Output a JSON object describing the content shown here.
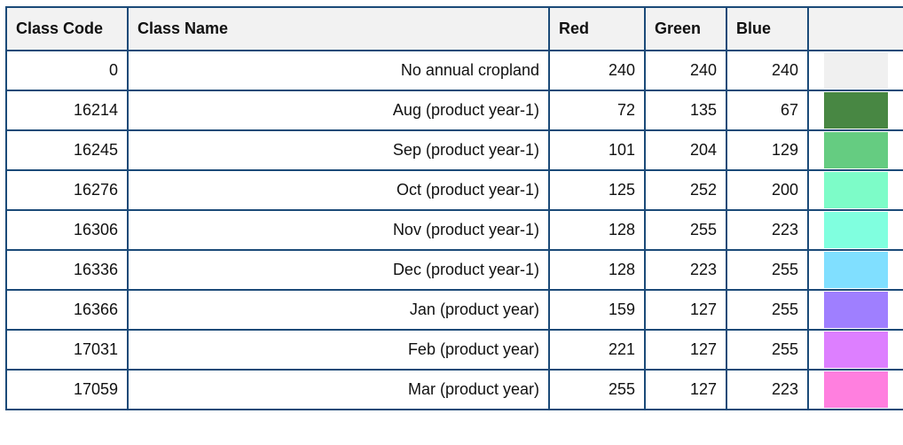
{
  "columns": [
    "Class Code",
    "Class Name",
    "Red",
    "Green",
    "Blue",
    ""
  ],
  "rows": [
    {
      "code": "0",
      "name": "No annual cropland",
      "red": "240",
      "green": "240",
      "blue": "240",
      "color": "#f0f0f0"
    },
    {
      "code": "16214",
      "name": "Aug (product year-1)",
      "red": "72",
      "green": "135",
      "blue": "67",
      "color": "#488743"
    },
    {
      "code": "16245",
      "name": "Sep (product year-1)",
      "red": "101",
      "green": "204",
      "blue": "129",
      "color": "#65cc81"
    },
    {
      "code": "16276",
      "name": "Oct (product year-1)",
      "red": "125",
      "green": "252",
      "blue": "200",
      "color": "#7dfcc8"
    },
    {
      "code": "16306",
      "name": "Nov (product year-1)",
      "red": "128",
      "green": "255",
      "blue": "223",
      "color": "#80ffdf"
    },
    {
      "code": "16336",
      "name": "Dec (product year-1)",
      "red": "128",
      "green": "223",
      "blue": "255",
      "color": "#80dfff"
    },
    {
      "code": "16366",
      "name": "Jan (product year)",
      "red": "159",
      "green": "127",
      "blue": "255",
      "color": "#9f7fff"
    },
    {
      "code": "17031",
      "name": "Feb (product year)",
      "red": "221",
      "green": "127",
      "blue": "255",
      "color": "#dd7fff"
    },
    {
      "code": "17059",
      "name": "Mar (product year)",
      "red": "255",
      "green": "127",
      "blue": "223",
      "color": "#ff7fdf"
    }
  ]
}
